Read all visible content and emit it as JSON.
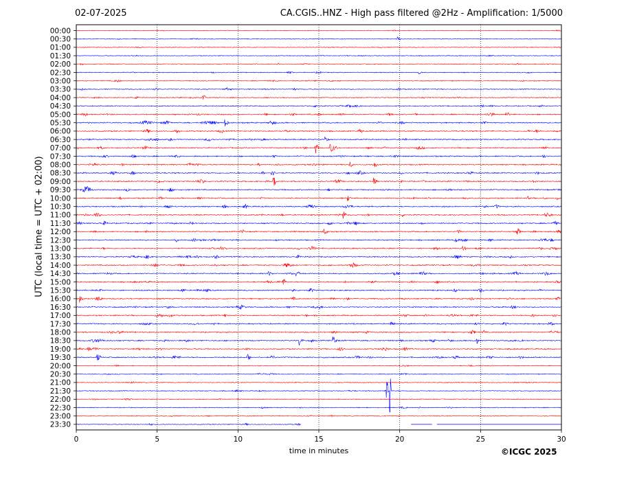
{
  "header": {
    "date": "02-07-2025",
    "title": "CA.CGIS..HNZ - High pass filtered @2Hz - Amplification: 1/5000"
  },
  "footer": {
    "copyright": "©ICGC 2025"
  },
  "chart_data": {
    "type": "line",
    "title": "CA.CGIS..HNZ - High pass filtered @2Hz - Amplification: 1/5000",
    "xlabel": "time in minutes",
    "ylabel": "UTC (local time = UTC + 02:00)",
    "xlim": [
      0,
      30
    ],
    "xticks": [
      0,
      5,
      10,
      15,
      20,
      25,
      30
    ],
    "vertical_gridlines_at": [
      5,
      10,
      15,
      20,
      25
    ],
    "grid": "vertical dotted",
    "row_labels": [
      "00:00",
      "00:30",
      "01:00",
      "01:30",
      "02:00",
      "02:30",
      "03:00",
      "03:30",
      "04:00",
      "04:30",
      "05:00",
      "05:30",
      "06:00",
      "06:30",
      "07:00",
      "07:30",
      "08:00",
      "08:30",
      "09:00",
      "09:30",
      "10:00",
      "10:30",
      "11:00",
      "11:30",
      "12:00",
      "12:30",
      "13:00",
      "13:30",
      "14:00",
      "14:30",
      "15:00",
      "15:30",
      "16:00",
      "16:30",
      "17:00",
      "17:30",
      "18:00",
      "18:30",
      "19:00",
      "19:30",
      "20:00",
      "20:30",
      "21:00",
      "21:30",
      "22:00",
      "22:30",
      "23:00",
      "23:30"
    ],
    "trace_colors": [
      "#ff0000",
      "#0000ff"
    ],
    "last_row_data_end_min": 13.9,
    "events": [
      {
        "row": "00:30",
        "minute": 19.9,
        "amp": 0.3
      },
      {
        "row": "02:30",
        "minute": 21.2,
        "amp": 0.2
      },
      {
        "row": "05:00",
        "minute": 26.6,
        "amp": 0.5
      },
      {
        "row": "05:30",
        "minute": 9.2,
        "amp": 0.6
      },
      {
        "row": "06:30",
        "minute": 15.4,
        "amp": 0.6
      },
      {
        "row": "07:00",
        "minute": 14.8,
        "amp": 0.9
      },
      {
        "row": "07:00",
        "minute": 15.7,
        "amp": 0.6
      },
      {
        "row": "08:00",
        "minute": 16.9,
        "amp": 0.5
      },
      {
        "row": "08:30",
        "minute": 12.1,
        "amp": 0.5
      },
      {
        "row": "09:00",
        "minute": 12.2,
        "amp": 0.8
      },
      {
        "row": "09:00",
        "minute": 18.4,
        "amp": 0.6
      },
      {
        "row": "10:00",
        "minute": 16.8,
        "amp": 0.5
      },
      {
        "row": "11:00",
        "minute": 16.5,
        "amp": 0.6
      },
      {
        "row": "12:00",
        "minute": 15.3,
        "amp": 0.6
      },
      {
        "row": "13:00",
        "minute": 23.9,
        "amp": 0.5
      },
      {
        "row": "14:30",
        "minute": 13.6,
        "amp": 0.5
      },
      {
        "row": "15:00",
        "minute": 12.8,
        "amp": 0.5
      },
      {
        "row": "16:00",
        "minute": 0.2,
        "amp": 0.6
      },
      {
        "row": "18:30",
        "minute": 13.8,
        "amp": 0.8
      },
      {
        "row": "18:30",
        "minute": 15.9,
        "amp": 0.8
      },
      {
        "row": "18:30",
        "minute": 24.7,
        "amp": 0.7
      },
      {
        "row": "19:30",
        "minute": 1.3,
        "amp": 0.6
      },
      {
        "row": "19:30",
        "minute": 10.6,
        "amp": 0.5
      },
      {
        "row": "21:30",
        "minute": 19.2,
        "amp": 3.5
      },
      {
        "row": "21:30",
        "minute": 19.4,
        "amp": 4.5
      }
    ]
  }
}
